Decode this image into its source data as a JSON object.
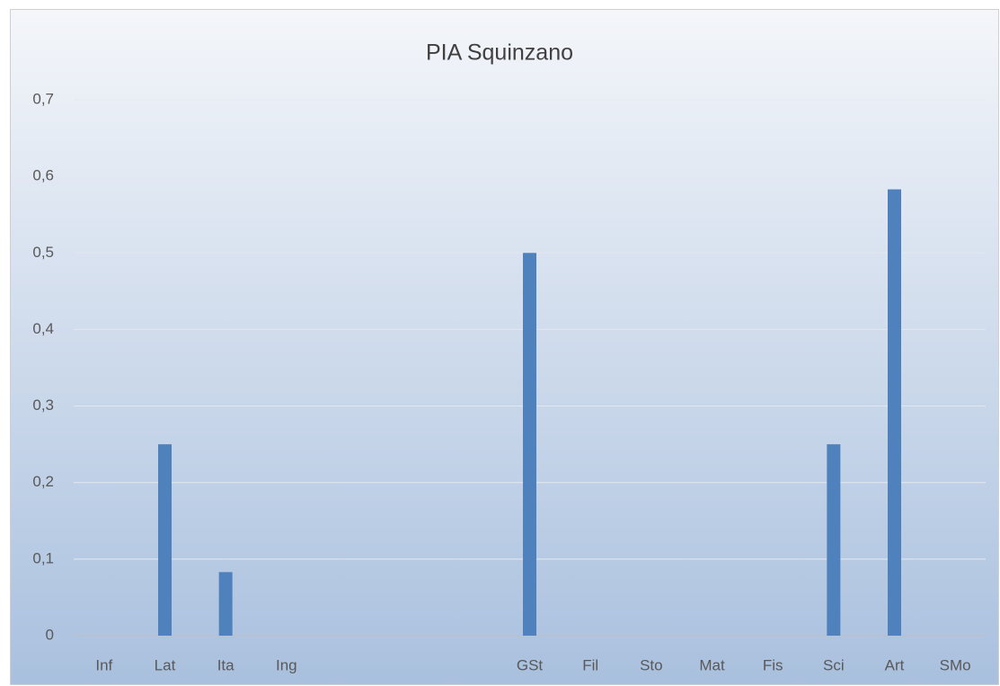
{
  "chart_data": {
    "type": "bar",
    "title": "PIA Squinzano",
    "categories": [
      "Inf",
      "Lat",
      "Ita",
      "Ing",
      null,
      null,
      null,
      "GSt",
      "Fil",
      "Sto",
      "Mat",
      "Fis",
      "Sci",
      "Art",
      "SMo"
    ],
    "values": [
      0,
      0.25,
      0.083,
      0,
      null,
      null,
      null,
      0.5,
      0,
      0,
      0,
      0,
      0.25,
      0.583,
      0
    ],
    "color": "#4f81bd",
    "ylim": [
      0,
      0.7
    ],
    "yticks": [
      0,
      {
        "value": 0.1,
        "label": "0,1"
      },
      {
        "value": 0.2,
        "label": "0,2"
      },
      {
        "value": 0.3,
        "label": "0,3"
      },
      {
        "value": 0.4,
        "label": "0,4"
      },
      {
        "value": 0.5,
        "label": "0,5"
      },
      {
        "value": 0.6,
        "label": "0,6"
      },
      {
        "value": 0.7,
        "label": "0,7"
      }
    ],
    "grid": true
  }
}
